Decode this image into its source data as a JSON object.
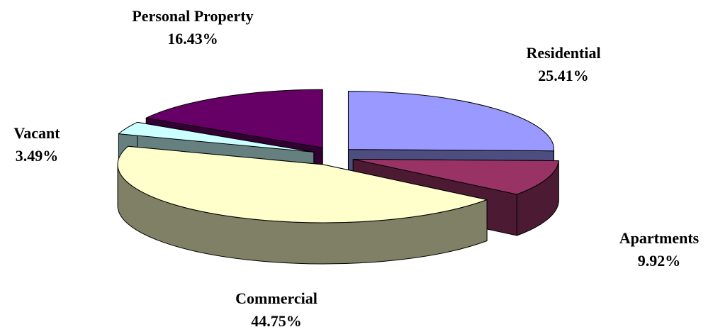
{
  "chart_data": {
    "type": "pie",
    "categories": [
      "Residential",
      "Apartments",
      "Commercial",
      "Vacant",
      "Personal Property"
    ],
    "values": [
      25.41,
      9.92,
      44.75,
      3.49,
      16.43
    ],
    "value_labels": [
      "25.41%",
      "9.92%",
      "44.75%",
      "3.49%",
      "16.43%"
    ],
    "colors": [
      "#9999ff",
      "#993366",
      "#ffffcc",
      "#ccffff",
      "#660066"
    ]
  }
}
